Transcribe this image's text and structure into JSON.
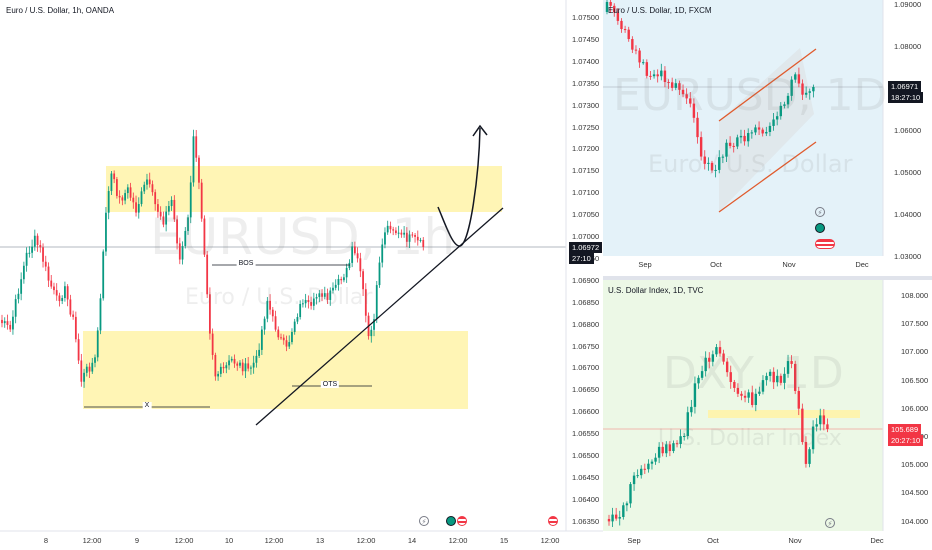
{
  "main": {
    "title": "Euro / U.S. Dollar, 1h, OANDA",
    "watermark_symbol": "EURUSD, 1h",
    "watermark_name": "Euro / U.S. Dollar",
    "price_ticks": [
      "1.07500",
      "1.07450",
      "1.07400",
      "1.07350",
      "1.07300",
      "1.07250",
      "1.07200",
      "1.07150",
      "1.07100",
      "1.07050",
      "1.07000",
      "1.06950",
      "1.06900",
      "1.06850",
      "1.06800",
      "1.06750",
      "1.06700",
      "1.06650",
      "1.06600",
      "1.06550",
      "1.06500",
      "1.06450",
      "1.06400",
      "1.06350"
    ],
    "current_price": "1.06972",
    "countdown": "27:10",
    "time_labels": [
      "8",
      "12:00",
      "9",
      "12:00",
      "10",
      "12:00",
      "13",
      "12:00",
      "14",
      "12:00",
      "15",
      "12:00"
    ],
    "labels": {
      "bos": "BOS",
      "x": "X",
      "ots": "OTS"
    }
  },
  "eurusd_daily": {
    "title": "Euro / U.S. Dollar, 1D, FXCM",
    "watermark_symbol": "EURUSD, 1D",
    "watermark_name": "Euro / U.S. Dollar",
    "price_ticks": [
      "1.09000",
      "1.08000",
      "1.07000",
      "1.06000",
      "1.05000",
      "1.04000",
      "1.03000"
    ],
    "current_price": "1.06971",
    "countdown": "18:27:10",
    "time_labels": [
      "Sep",
      "Oct",
      "Nov",
      "Dec"
    ]
  },
  "dxy_daily": {
    "title": "U.S. Dollar Index, 1D, TVC",
    "watermark_symbol": "DXY, 1D",
    "watermark_name": "U.S. Dollar Index",
    "price_ticks": [
      "108.000",
      "107.500",
      "107.000",
      "106.500",
      "106.000",
      "105.500",
      "105.000",
      "104.500",
      "104.000"
    ],
    "current_price": "105.689",
    "countdown": "20:27:10",
    "time_labels": [
      "Sep",
      "Oct",
      "Nov",
      "Dec"
    ]
  },
  "colors": {
    "up": "#089981",
    "down": "#f23645",
    "zone": "#fff3a8",
    "eur_bg": "#e4f2f9",
    "dxy_bg": "#ecf8e6",
    "channel": "#e05a2c",
    "badge_blue": "#2962ff"
  },
  "icons": [
    "lightning-icon",
    "earnings-icon",
    "us-flag-icon"
  ]
}
